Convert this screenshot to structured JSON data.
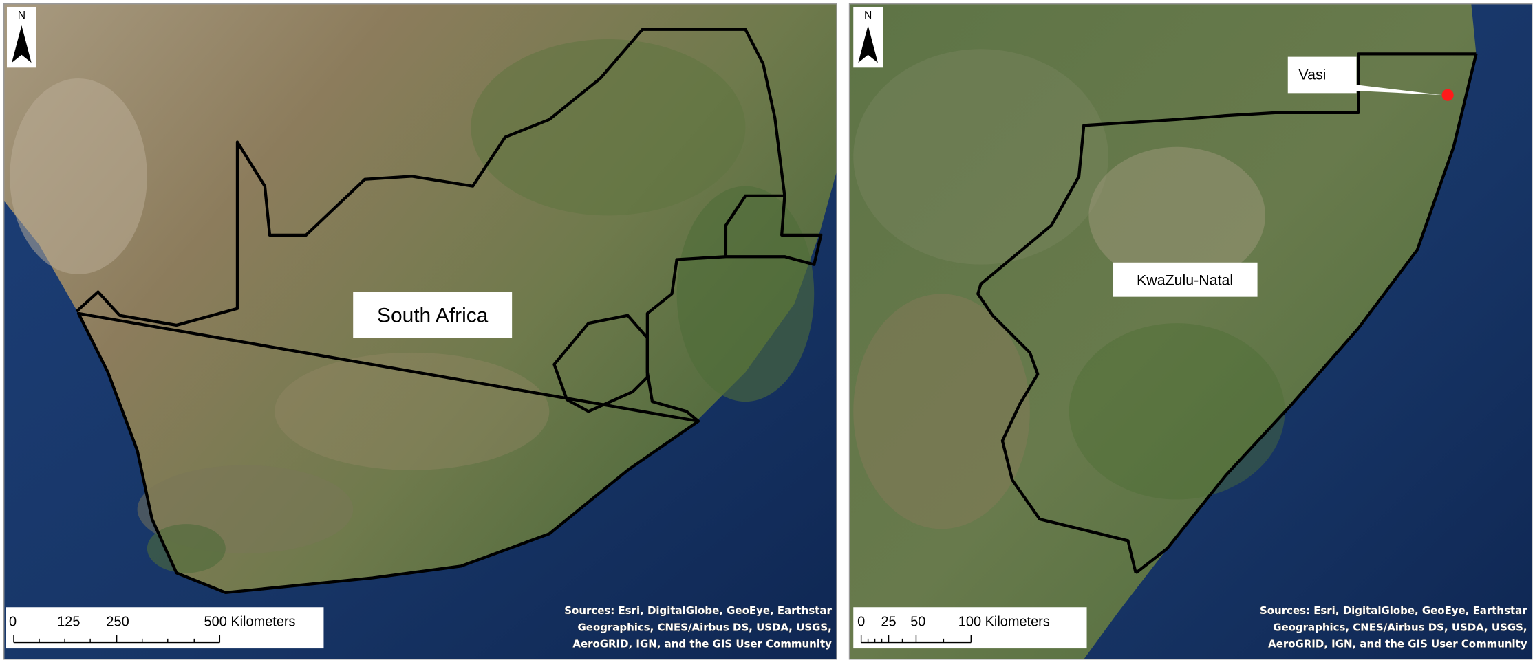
{
  "panels": [
    {
      "north": "N",
      "label": "South Africa",
      "scale": [
        "0",
        "125",
        "250",
        "500 Kilometers"
      ],
      "attribution": [
        "Sources: Esri, DigitalGlobe, GeoEye, Earthstar",
        "Geographics, CNES/Airbus DS, USDA, USGS,",
        "AeroGRID, IGN, and the GIS User Community"
      ]
    },
    {
      "north": "N",
      "label": "KwaZulu-Natal",
      "marker_label": "Vasi",
      "scale": [
        "0",
        "25",
        "50",
        "100 Kilometers"
      ],
      "attribution": [
        "Sources: Esri, DigitalGlobe, GeoEye, Earthstar",
        "Geographics, CNES/Airbus DS, USDA, USGS,",
        "AeroGRID, IGN, and the GIS User Community"
      ]
    }
  ]
}
